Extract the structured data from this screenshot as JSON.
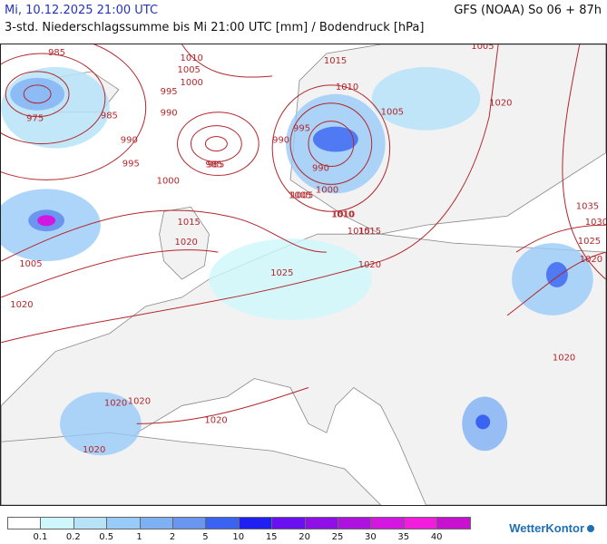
{
  "header": {
    "valid_time": "Mi, 10.12.2025 21:00 UTC",
    "model_run": "GFS (NOAA) So 06 + 87h",
    "subtitle": "3-std. Niederschlagssumme bis Mi 21:00 UTC [mm] / Bodendruck [hPa]"
  },
  "isobar_labels": [
    "985",
    "1010",
    "1005",
    "1000",
    "995",
    "990",
    "975",
    "985",
    "985",
    "990",
    "995",
    "1000",
    "1015",
    "1020",
    "1005",
    "1020",
    "1015",
    "1010",
    "1005",
    "1000",
    "990",
    "995",
    "990",
    "985",
    "1015",
    "1005",
    "1010",
    "1015",
    "1005",
    "1020",
    "1025",
    "1020",
    "1035",
    "1030",
    "1025",
    "1020",
    "1020",
    "1020",
    "1020",
    "1020",
    "1020",
    "1010",
    "1005"
  ],
  "legend": {
    "values": [
      "0.1",
      "0.2",
      "0.5",
      "1",
      "2",
      "5",
      "10",
      "15",
      "20",
      "25",
      "30",
      "35",
      "40"
    ],
    "colors": [
      "#ffffff",
      "#cdf7fb",
      "#b7e3f8",
      "#98cbf7",
      "#7eb0f4",
      "#6a96ef",
      "#3a63f2",
      "#1f1ff2",
      "#6a0ff0",
      "#8f10e6",
      "#ae12de",
      "#d316e0",
      "#f11cdc",
      "#c810d0"
    ]
  },
  "brand": "WetterKontor",
  "colors": {
    "isobar": "#b3262b",
    "land": "#f2f2f3",
    "sea": "#ffffff",
    "coast": "#888888",
    "border": "#7a7a7a"
  }
}
